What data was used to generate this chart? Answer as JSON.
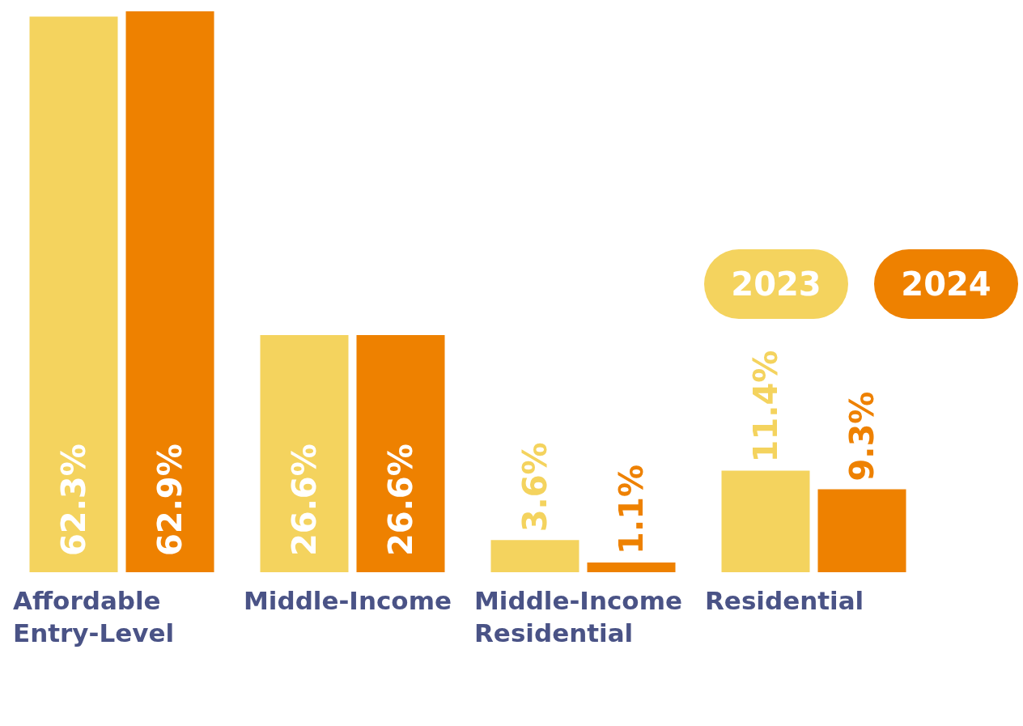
{
  "chart_data": {
    "type": "bar",
    "categories": [
      "Affordable Entry-Level",
      "Middle-Income",
      "Middle-Income Residential",
      "Residential"
    ],
    "series": [
      {
        "name": "2023",
        "color": "#f4d35e",
        "values": [
          62.3,
          26.6,
          3.6,
          11.4
        ],
        "value_labels": [
          "62.3%",
          "26.6%",
          "3.6%",
          "11.4%"
        ]
      },
      {
        "name": "2024",
        "color": "#ee8100",
        "values": [
          62.9,
          26.6,
          1.1,
          9.3
        ],
        "value_labels": [
          "62.9%",
          "26.6%",
          "1.1%",
          "9.3%"
        ]
      }
    ],
    "legend": "top right",
    "grid": false
  }
}
